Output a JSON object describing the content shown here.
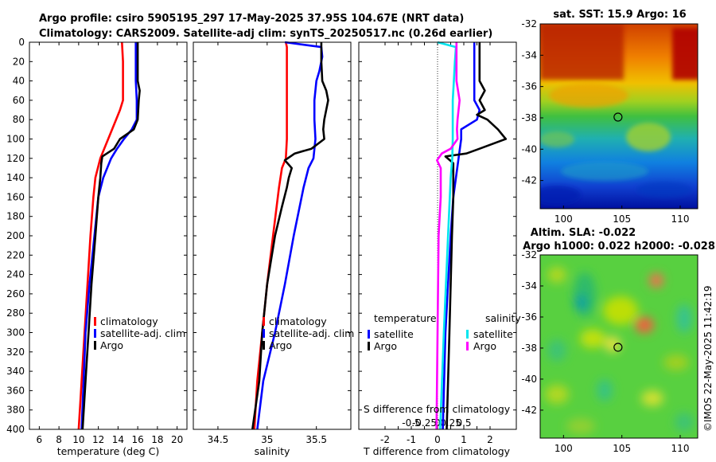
{
  "title": {
    "line1": "Argo profile: csiro 5905195_297 17-May-2025 37.95S 104.67E (NRT data)",
    "line2": "Climatology: CARS2009. Satellite-adj clim: synTS_20250517.nc (0.26d earlier)"
  },
  "depth_ticks": [
    0,
    20,
    40,
    60,
    80,
    100,
    120,
    140,
    160,
    180,
    200,
    220,
    240,
    260,
    280,
    300,
    320,
    340,
    360,
    380,
    400
  ],
  "colors": {
    "clim": "#ff0000",
    "sat": "#0000ff",
    "argo": "#000000",
    "sat_s": "#00e5ee",
    "argo_s": "#ff00ff"
  },
  "chart_data": [
    {
      "type": "line",
      "name": "temperature",
      "xlabel": "temperature (deg C)",
      "ylabel": "",
      "xlim": [
        5,
        21
      ],
      "ylim": [
        400,
        0
      ],
      "xticks": [
        6,
        8,
        10,
        12,
        14,
        16,
        18,
        20
      ],
      "legend": [
        "climatology",
        "satellite-adj. clim",
        "Argo"
      ],
      "series": [
        {
          "name": "climatology",
          "depth": [
            0,
            20,
            40,
            60,
            70,
            80,
            100,
            120,
            140,
            160,
            200,
            250,
            300,
            350,
            400
          ],
          "values": [
            14.4,
            14.5,
            14.5,
            14.5,
            14.2,
            13.8,
            13.0,
            12.2,
            11.7,
            11.5,
            11.2,
            10.9,
            10.6,
            10.3,
            10.0
          ]
        },
        {
          "name": "satellite-adj. clim",
          "depth": [
            0,
            20,
            40,
            60,
            80,
            90,
            100,
            110,
            120,
            140,
            160,
            200,
            250,
            300,
            350,
            400
          ],
          "values": [
            15.8,
            15.8,
            15.8,
            15.9,
            15.9,
            15.4,
            14.6,
            13.9,
            13.3,
            12.5,
            12.0,
            11.6,
            11.1,
            10.7,
            10.5,
            10.3
          ]
        },
        {
          "name": "Argo",
          "depth": [
            0,
            20,
            40,
            50,
            60,
            80,
            90,
            100,
            110,
            118,
            125,
            140,
            160,
            200,
            250,
            300,
            350,
            400
          ],
          "values": [
            16.0,
            16.0,
            16.0,
            16.2,
            16.1,
            16.0,
            15.6,
            14.2,
            13.6,
            12.4,
            12.3,
            12.2,
            12.0,
            11.7,
            11.3,
            11.0,
            10.7,
            10.4
          ]
        }
      ]
    },
    {
      "type": "line",
      "name": "salinity",
      "xlabel": "salinity",
      "xlim": [
        34.25,
        35.85
      ],
      "ylim": [
        400,
        0
      ],
      "xticks": [
        34.5,
        35,
        35.5
      ],
      "xticklabels": [
        "34.5",
        "35",
        "35.5"
      ],
      "legend": [
        "climatology",
        "satellite-adj. clim",
        "Argo"
      ],
      "series": [
        {
          "name": "climatology",
          "depth": [
            0,
            5,
            20,
            50,
            80,
            100,
            120,
            130,
            150,
            200,
            250,
            300,
            350,
            400
          ],
          "values": [
            35.19,
            35.2,
            35.2,
            35.2,
            35.2,
            35.2,
            35.19,
            35.15,
            35.12,
            35.06,
            35.0,
            34.95,
            34.9,
            34.87
          ]
        },
        {
          "name": "satellite-adj. clim",
          "depth": [
            0,
            5,
            15,
            30,
            40,
            60,
            80,
            100,
            120,
            130,
            150,
            200,
            250,
            300,
            350,
            400
          ],
          "values": [
            35.18,
            35.55,
            35.56,
            35.53,
            35.5,
            35.48,
            35.48,
            35.49,
            35.47,
            35.42,
            35.37,
            35.27,
            35.18,
            35.08,
            34.96,
            34.9
          ]
        },
        {
          "name": "Argo",
          "depth": [
            0,
            10,
            20,
            40,
            50,
            60,
            80,
            90,
            100,
            110,
            115,
            122,
            130,
            140,
            150,
            170,
            200,
            250,
            300,
            350,
            400
          ],
          "values": [
            35.55,
            35.55,
            35.55,
            35.56,
            35.6,
            35.62,
            35.58,
            35.57,
            35.58,
            35.45,
            35.28,
            35.18,
            35.25,
            35.22,
            35.2,
            35.15,
            35.08,
            35.0,
            34.95,
            34.92,
            34.85
          ]
        }
      ]
    },
    {
      "type": "line",
      "name": "difference",
      "xlabel": "T difference from climatology",
      "xlim": [
        -3,
        3
      ],
      "ylim": [
        400,
        0
      ],
      "xticks": [
        -2,
        -1.5,
        -1,
        -0.5,
        0,
        0.5,
        1,
        1.5,
        2
      ],
      "xticklabels": [
        "-2",
        "",
        "-1",
        "",
        "0",
        "",
        "1",
        "",
        "2"
      ],
      "top_axis_label": "S difference from climatology",
      "top_ticks": [
        -0.5,
        -0.25,
        0,
        0.25,
        0.5
      ],
      "top_ticklabels": [
        "-0.5",
        "-0.25",
        "0",
        "0.25",
        "0.5"
      ],
      "zero_line": true,
      "legend_temperature": {
        "title": "temperature",
        "entries": [
          "satellite",
          "Argo"
        ]
      },
      "legend_salinity": {
        "title": "salinity",
        "entries": [
          "satellite",
          "Argo"
        ]
      },
      "series": [
        {
          "name": "T satellite",
          "axis": "T",
          "depth": [
            0,
            20,
            40,
            60,
            70,
            80,
            90,
            100,
            120,
            160,
            200,
            300,
            400
          ],
          "values": [
            1.4,
            1.4,
            1.4,
            1.4,
            1.6,
            1.5,
            0.9,
            0.9,
            0.8,
            0.6,
            0.5,
            0.3,
            0.2
          ]
        },
        {
          "name": "T Argo",
          "axis": "T",
          "depth": [
            0,
            20,
            40,
            50,
            60,
            70,
            75,
            80,
            90,
            100,
            110,
            115,
            118,
            125,
            140,
            160,
            200,
            250,
            300,
            350,
            400
          ],
          "values": [
            1.6,
            1.6,
            1.6,
            1.8,
            1.6,
            1.8,
            1.5,
            1.9,
            2.3,
            2.6,
            1.6,
            1.1,
            0.3,
            0.6,
            0.6,
            0.6,
            0.55,
            0.5,
            0.45,
            0.4,
            0.35
          ]
        },
        {
          "name": "S satellite",
          "axis": "S",
          "depth": [
            0,
            5,
            20,
            40,
            60,
            80,
            100,
            120,
            140,
            200,
            300,
            400
          ],
          "values": [
            0,
            0.35,
            0.33,
            0.31,
            0.29,
            0.29,
            0.29,
            0.28,
            0.25,
            0.2,
            0.12,
            0.05
          ]
        },
        {
          "name": "S Argo",
          "axis": "S",
          "depth": [
            0,
            20,
            40,
            60,
            80,
            90,
            100,
            110,
            115,
            122,
            130,
            160,
            200,
            300,
            400
          ],
          "values": [
            0.36,
            0.36,
            0.36,
            0.42,
            0.38,
            0.37,
            0.38,
            0.25,
            0.08,
            -0.01,
            0.06,
            0.06,
            0.02,
            0.0,
            -0.02
          ]
        }
      ]
    }
  ],
  "maps": {
    "sst": {
      "title": "sat. SST: 15.9 Argo: 16",
      "yticks": [
        -32,
        -34,
        -36,
        -38,
        -40,
        -42
      ],
      "xticks": [
        100,
        105,
        110
      ],
      "marker": {
        "lon": 104.67,
        "lat": -37.95
      }
    },
    "sla": {
      "title1": "Altim. SLA: -0.022",
      "title2": "Argo h1000: 0.022 h2000: -0.028",
      "yticks": [
        -32,
        -34,
        -36,
        -38,
        -40,
        -42
      ],
      "xticks": [
        100,
        105,
        110
      ],
      "marker": {
        "lon": 104.67,
        "lat": -37.95
      }
    },
    "lon_range": [
      98,
      111.5
    ],
    "lat_range": [
      -43.8,
      -32
    ]
  },
  "watermark": "©IMOS 22-May-2025 11:42:19"
}
